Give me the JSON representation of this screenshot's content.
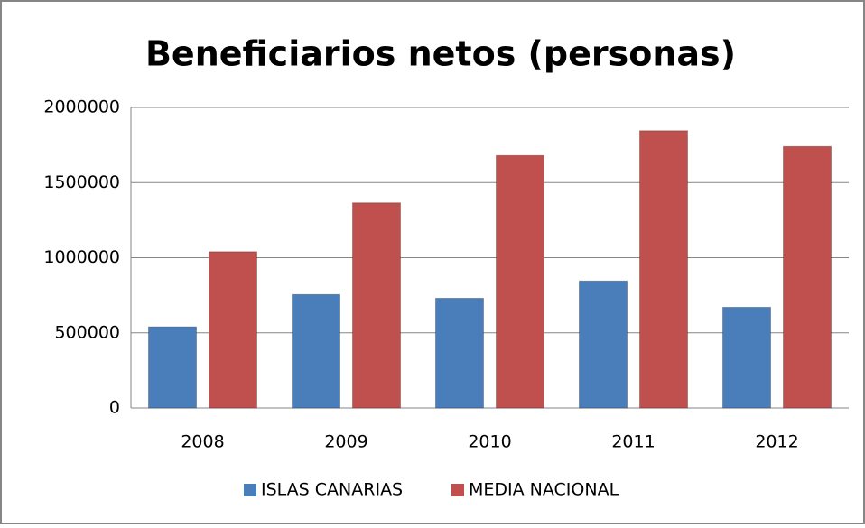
{
  "chart_data": {
    "type": "bar",
    "title": "Beneficiarios netos (personas)",
    "categories": [
      "2008",
      "2009",
      "2010",
      "2011",
      "2012"
    ],
    "series": [
      {
        "name": "ISLAS CANARIAS",
        "color": "#4a7ebb",
        "values": [
          540000,
          755000,
          730000,
          845000,
          670000
        ]
      },
      {
        "name": "MEDIA NACIONAL",
        "color": "#c0504d",
        "values": [
          1040000,
          1365000,
          1680000,
          1845000,
          1740000
        ]
      }
    ],
    "ylim": [
      0,
      2000000
    ],
    "yticks": [
      0,
      500000,
      1000000,
      1500000,
      2000000
    ],
    "grid": true,
    "legend": "bottom"
  }
}
